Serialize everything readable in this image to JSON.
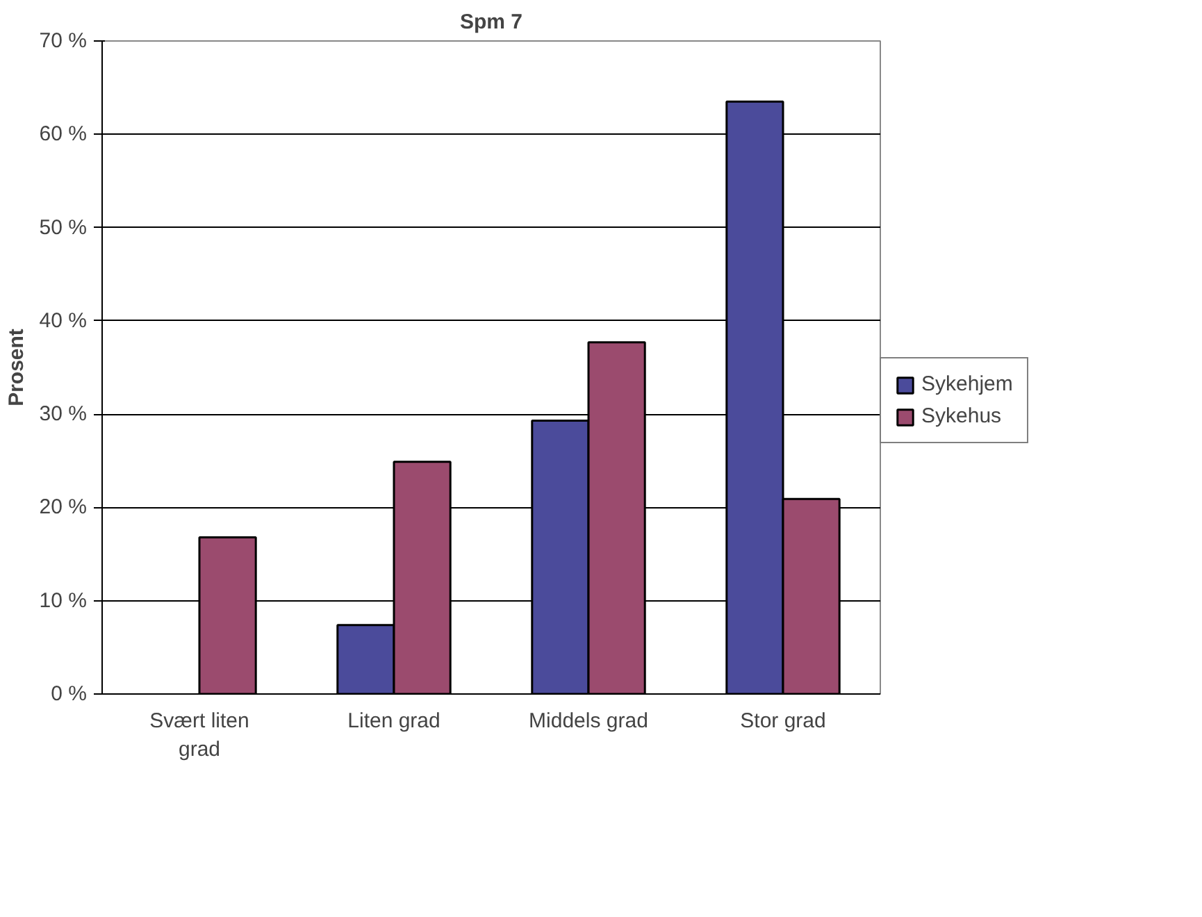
{
  "chart_data": {
    "type": "bar",
    "title": "Spm 7",
    "ylabel": "Prosent",
    "categories": [
      "Svært liten grad",
      "Liten grad",
      "Middels grad",
      "Stor grad"
    ],
    "series": [
      {
        "name": "Sykehjem",
        "color": "#4b4b9b",
        "values": [
          null,
          7.4,
          29.3,
          63.5
        ]
      },
      {
        "name": "Sykehus",
        "color": "#9b4b6e",
        "values": [
          16.8,
          24.9,
          37.7,
          20.9
        ]
      }
    ],
    "ylim": [
      0,
      70
    ],
    "yticks": [
      {
        "value": 0,
        "label": "0 %"
      },
      {
        "value": 10,
        "label": "10 %"
      },
      {
        "value": 20,
        "label": "20 %"
      },
      {
        "value": 30,
        "label": "30 %"
      },
      {
        "value": 40,
        "label": "40 %"
      },
      {
        "value": 50,
        "label": "50 %"
      },
      {
        "value": 60,
        "label": "60 %"
      },
      {
        "value": 70,
        "label": "70 %"
      }
    ],
    "grid": "y",
    "legend": "right"
  }
}
